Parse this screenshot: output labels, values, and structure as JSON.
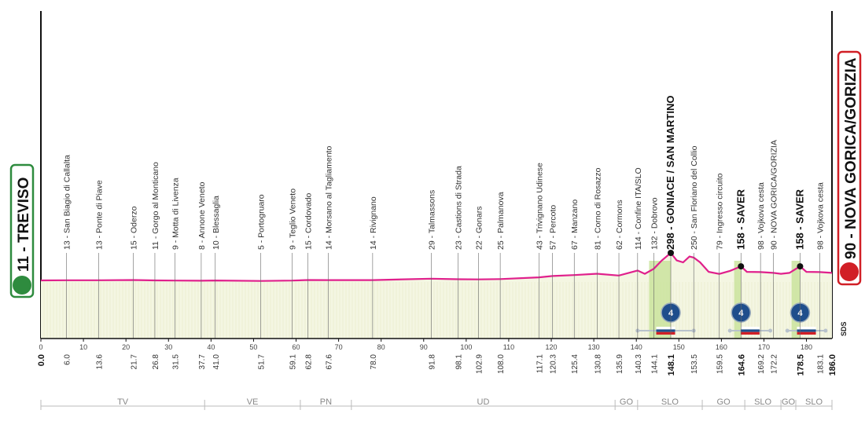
{
  "chart_data": {
    "type": "area",
    "title": "",
    "xlabel": "",
    "ylabel": "",
    "xlim": [
      0,
      186
    ],
    "ylim": [
      0,
      700
    ],
    "x_ticks": [
      0,
      10,
      20,
      30,
      40,
      50,
      60,
      70,
      80,
      90,
      100,
      110,
      120,
      130,
      140,
      150,
      160,
      170,
      180
    ],
    "colors": {
      "profile_line": "#e0208c",
      "fill": "#f4f6e2",
      "highlight": "#c8e29a",
      "kom_badge": "#1f4e8c",
      "start_box": "#2e8b3e",
      "finish_box": "#d11f26"
    },
    "start": {
      "label": "11 - TREVISO",
      "icon": "bike-icon"
    },
    "finish": {
      "label": "90 - NOVA GORICA/GORIZIA",
      "icon": "bike-icon"
    },
    "brand": "SDS",
    "profile": [
      [
        0,
        11
      ],
      [
        6,
        13
      ],
      [
        13.6,
        13
      ],
      [
        21.7,
        15
      ],
      [
        26.8,
        11
      ],
      [
        31.5,
        9
      ],
      [
        37.7,
        8
      ],
      [
        41,
        10
      ],
      [
        51.7,
        5
      ],
      [
        59.1,
        9
      ],
      [
        62.8,
        15
      ],
      [
        67.6,
        14
      ],
      [
        78,
        14
      ],
      [
        91.8,
        29
      ],
      [
        98.1,
        23
      ],
      [
        102.9,
        22
      ],
      [
        108,
        25
      ],
      [
        117.1,
        43
      ],
      [
        120.3,
        57
      ],
      [
        125.4,
        67
      ],
      [
        130.8,
        81
      ],
      [
        135.9,
        62
      ],
      [
        140.3,
        114
      ],
      [
        142,
        80
      ],
      [
        144.1,
        132
      ],
      [
        146,
        220
      ],
      [
        148.1,
        298
      ],
      [
        149.5,
        220
      ],
      [
        151,
        200
      ],
      [
        152.5,
        260
      ],
      [
        153.5,
        250
      ],
      [
        155,
        200
      ],
      [
        157,
        100
      ],
      [
        159.5,
        79
      ],
      [
        162,
        110
      ],
      [
        164.6,
        158
      ],
      [
        166,
        100
      ],
      [
        169.2,
        98
      ],
      [
        172.2,
        90
      ],
      [
        174,
        80
      ],
      [
        176,
        90
      ],
      [
        178.5,
        158
      ],
      [
        180,
        100
      ],
      [
        183.1,
        98
      ],
      [
        186,
        90
      ]
    ],
    "waypoints": [
      {
        "km": 6.0,
        "label": "13 - San Biagio di Callalta"
      },
      {
        "km": 13.6,
        "label": "13 - Ponte di Piave"
      },
      {
        "km": 21.7,
        "label": "15 - Oderzo"
      },
      {
        "km": 26.8,
        "label": "11 - Gorgo al Monticano"
      },
      {
        "km": 31.5,
        "label": "9 - Motta di Livenza"
      },
      {
        "km": 37.7,
        "label": "8 - Annone Veneto"
      },
      {
        "km": 41.0,
        "label": "10 - Blessaglia"
      },
      {
        "km": 51.7,
        "label": "5 - Portogruaro"
      },
      {
        "km": 59.1,
        "label": "9 - Teglio Veneto"
      },
      {
        "km": 62.8,
        "label": "15 - Cordovado"
      },
      {
        "km": 67.6,
        "label": "14 - Morsano al Tagliamento"
      },
      {
        "km": 78.0,
        "label": "14 - Rivignano"
      },
      {
        "km": 91.8,
        "label": "29 - Talmassons"
      },
      {
        "km": 98.1,
        "label": "23 - Castions di Strada"
      },
      {
        "km": 102.9,
        "label": "22 - Gonars"
      },
      {
        "km": 108.0,
        "label": "25 - Palmanova"
      },
      {
        "km": 117.1,
        "label": "43 - Trivignano Udinese"
      },
      {
        "km": 120.3,
        "label": "57 - Percoto"
      },
      {
        "km": 125.4,
        "label": "67 - Manzano"
      },
      {
        "km": 130.8,
        "label": "81 - Corno di Rosazzo"
      },
      {
        "km": 135.9,
        "label": "62 - Cormons"
      },
      {
        "km": 140.3,
        "label": "114 - Confine ITA/SLO"
      },
      {
        "km": 144.1,
        "label": "132 - Dobrovo"
      },
      {
        "km": 148.1,
        "label": "298 - GONIACE / SAN MARTINO",
        "strong": true
      },
      {
        "km": 153.5,
        "label": "250 - San Floriano del Collio"
      },
      {
        "km": 159.5,
        "label": "79 - Ingresso circuito"
      },
      {
        "km": 164.6,
        "label": "158 - SAVER",
        "strong": true
      },
      {
        "km": 169.2,
        "label": "98 - Vojkova cesta"
      },
      {
        "km": 172.2,
        "label": "90 - NOVA GORICA/GORIZIA"
      },
      {
        "km": 178.5,
        "label": "158 - SAVER",
        "strong": true
      },
      {
        "km": 183.1,
        "label": "98 - Vojkova cesta"
      }
    ],
    "distance_labels": [
      "0.0",
      "6.0",
      "13.6",
      "21.7",
      "26.8",
      "31.5",
      "37.7",
      "41.0",
      "51.7",
      "59.1",
      "62.8",
      "67.6",
      "78.0",
      "91.8",
      "98.1",
      "102.9",
      "108.0",
      "117.1",
      "120.3",
      "125.4",
      "130.8",
      "135.9",
      "140.3",
      "144.1",
      "148.1",
      "153.5",
      "159.5",
      "164.6",
      "169.2",
      "172.2",
      "178.5",
      "183.1",
      "186.0"
    ],
    "strong_distances": [
      "0.0",
      "148.1",
      "164.6",
      "178.5",
      "186.0"
    ],
    "kom": [
      {
        "km": 148.1,
        "category": "4",
        "from_km": 143,
        "to_km": 148.1
      },
      {
        "km": 164.6,
        "category": "4",
        "from_km": 163,
        "to_km": 164.6
      },
      {
        "km": 178.5,
        "category": "4",
        "from_km": 176.5,
        "to_km": 178.5
      }
    ],
    "flag_segments": [
      {
        "from_km": 140.3,
        "to_km": 153.5
      },
      {
        "from_km": 162,
        "to_km": 171.5
      },
      {
        "from_km": 175.5,
        "to_km": 184.5
      }
    ],
    "regions": [
      {
        "label": "TV",
        "from_km": 0,
        "to_km": 38.5
      },
      {
        "label": "VE",
        "from_km": 38.5,
        "to_km": 61
      },
      {
        "label": "PN",
        "from_km": 61,
        "to_km": 73
      },
      {
        "label": "UD",
        "from_km": 73,
        "to_km": 135
      },
      {
        "label": "GO",
        "from_km": 135,
        "to_km": 140.3
      },
      {
        "label": "SLO",
        "from_km": 140.3,
        "to_km": 155.5
      },
      {
        "label": "GO",
        "from_km": 155.5,
        "to_km": 165.5
      },
      {
        "label": "SLO",
        "from_km": 165.5,
        "to_km": 174
      },
      {
        "label": "GO",
        "from_km": 174,
        "to_km": 177.5
      },
      {
        "label": "SLO",
        "from_km": 177.5,
        "to_km": 186
      }
    ]
  }
}
